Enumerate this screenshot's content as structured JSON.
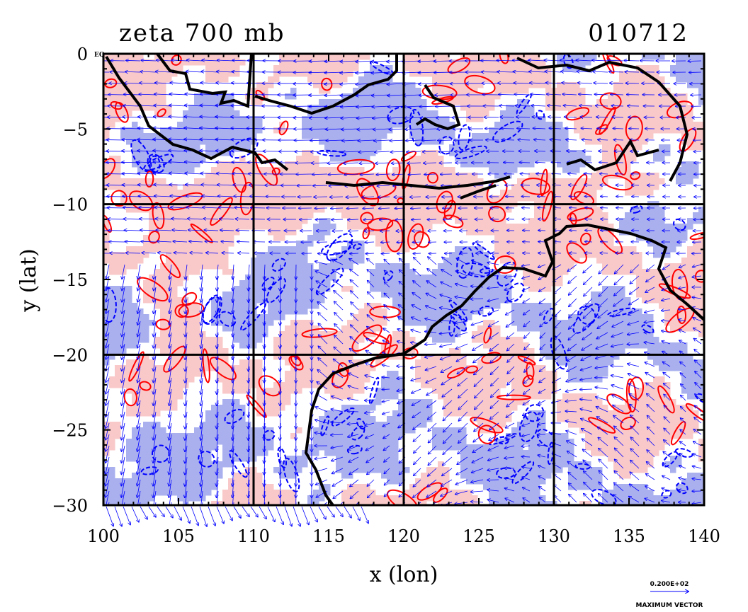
{
  "figure": {
    "title_left": "zeta 700 mb",
    "title_right": "010712",
    "xlabel": "x (lon)",
    "ylabel": "y (lat)",
    "equator_label": "EQ",
    "x_ticks": [
      100,
      105,
      110,
      115,
      120,
      125,
      130,
      135,
      140
    ],
    "y_ticks": [
      0,
      -5,
      -10,
      -15,
      -20,
      -25,
      -30
    ],
    "x_range": [
      100,
      140
    ],
    "y_range": [
      -30,
      0
    ],
    "gridlines_lon": [
      110,
      120,
      130
    ],
    "gridlines_lat": [
      -10,
      -20
    ],
    "vector_legend": {
      "magnitude": "0.200E+02",
      "caption": "MAXIMUM VECTOR"
    },
    "colors": {
      "positive_fill": "#f9c9c9",
      "positive_contour": "#ff0000",
      "negative_fill": "#aab0ee",
      "negative_contour": "#0000ff",
      "coastline": "#000000",
      "wind_vectors": "#0000ff"
    },
    "field": "relative vorticity (zeta) at 700 mb with wind vectors"
  }
}
